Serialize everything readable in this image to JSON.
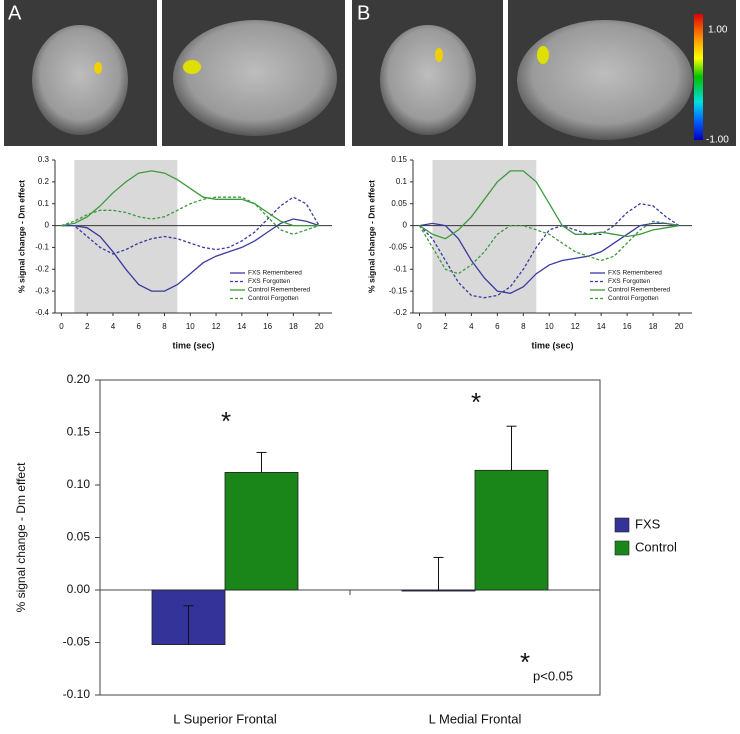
{
  "figure": {
    "panel_labels": [
      "A",
      "B"
    ],
    "colorbar_labels": [
      "1.00",
      "-1.00"
    ]
  },
  "chart_data": [
    {
      "type": "line",
      "xlabel": "time (sec)",
      "ylabel": "% signal change - Dm  effect",
      "x": [
        0,
        1,
        2,
        3,
        4,
        5,
        6,
        7,
        8,
        9,
        10,
        11,
        12,
        13,
        14,
        15,
        16,
        17,
        18,
        19,
        20
      ],
      "xlim": [
        -0.5,
        21
      ],
      "xticks": [
        0,
        2,
        4,
        6,
        8,
        10,
        12,
        14,
        16,
        18,
        20
      ],
      "ylim": [
        -0.4,
        0.3
      ],
      "yticks": [
        -0.4,
        -0.3,
        -0.2,
        -0.1,
        0,
        0.1,
        0.2,
        0.3
      ],
      "shade": [
        1,
        9
      ],
      "series": [
        {
          "name": "FXS Remembered",
          "color": "#3a3aa0",
          "style": "solid",
          "values": [
            0,
            0,
            -0.01,
            -0.05,
            -0.12,
            -0.2,
            -0.27,
            -0.3,
            -0.3,
            -0.27,
            -0.22,
            -0.17,
            -0.14,
            -0.12,
            -0.1,
            -0.07,
            -0.03,
            0.01,
            0.03,
            0.02,
            0
          ]
        },
        {
          "name": "FXS Forgotten",
          "color": "#3a3aa0",
          "style": "dashed",
          "values": [
            0,
            0,
            -0.05,
            -0.1,
            -0.13,
            -0.11,
            -0.08,
            -0.06,
            -0.05,
            -0.06,
            -0.08,
            -0.1,
            -0.11,
            -0.1,
            -0.07,
            -0.03,
            0.03,
            0.09,
            0.13,
            0.1,
            0
          ]
        },
        {
          "name": "Control Remembered",
          "color": "#3c9a3c",
          "style": "solid",
          "values": [
            0,
            0.01,
            0.04,
            0.09,
            0.15,
            0.2,
            0.24,
            0.25,
            0.24,
            0.21,
            0.17,
            0.13,
            0.12,
            0.12,
            0.12,
            0.1,
            0.06,
            0.02,
            0,
            0,
            0
          ]
        },
        {
          "name": "Control Forgotten",
          "color": "#3c9a3c",
          "style": "dashed",
          "values": [
            0,
            0.02,
            0.05,
            0.07,
            0.07,
            0.06,
            0.04,
            0.03,
            0.04,
            0.07,
            0.1,
            0.12,
            0.13,
            0.13,
            0.13,
            0.1,
            0.04,
            -0.02,
            -0.04,
            -0.02,
            0
          ]
        }
      ]
    },
    {
      "type": "line",
      "xlabel": "time (sec)",
      "ylabel": "% signal change - Dm  effect",
      "x": [
        0,
        1,
        2,
        3,
        4,
        5,
        6,
        7,
        8,
        9,
        10,
        11,
        12,
        13,
        14,
        15,
        16,
        17,
        18,
        19,
        20
      ],
      "xlim": [
        -0.5,
        21
      ],
      "xticks": [
        0,
        2,
        4,
        6,
        8,
        10,
        12,
        14,
        16,
        18,
        20
      ],
      "ylim": [
        -0.2,
        0.15
      ],
      "yticks": [
        -0.2,
        -0.15,
        -0.1,
        -0.05,
        0,
        0.05,
        0.1,
        0.15
      ],
      "shade": [
        1,
        9
      ],
      "series": [
        {
          "name": "FXS Remembered",
          "color": "#3a3aa0",
          "style": "solid",
          "values": [
            0,
            0.005,
            0,
            -0.03,
            -0.08,
            -0.12,
            -0.15,
            -0.155,
            -0.14,
            -0.11,
            -0.09,
            -0.08,
            -0.075,
            -0.07,
            -0.06,
            -0.04,
            -0.02,
            0,
            0.005,
            0.005,
            0
          ]
        },
        {
          "name": "FXS Forgotten",
          "color": "#3a3aa0",
          "style": "dashed",
          "values": [
            0,
            -0.03,
            -0.08,
            -0.13,
            -0.16,
            -0.165,
            -0.16,
            -0.14,
            -0.1,
            -0.05,
            -0.01,
            0,
            -0.01,
            -0.02,
            -0.02,
            0,
            0.03,
            0.05,
            0.045,
            0.02,
            0
          ]
        },
        {
          "name": "Control Remembered",
          "color": "#3c9a3c",
          "style": "solid",
          "values": [
            0,
            -0.02,
            -0.03,
            -0.01,
            0.02,
            0.06,
            0.1,
            0.125,
            0.125,
            0.1,
            0.05,
            0,
            -0.02,
            -0.02,
            -0.015,
            -0.02,
            -0.025,
            -0.02,
            -0.01,
            -0.005,
            0
          ]
        },
        {
          "name": "Control Forgotten",
          "color": "#3c9a3c",
          "style": "dashed",
          "values": [
            0,
            -0.05,
            -0.1,
            -0.11,
            -0.09,
            -0.06,
            -0.02,
            0,
            0,
            -0.01,
            -0.02,
            -0.04,
            -0.06,
            -0.07,
            -0.08,
            -0.07,
            -0.04,
            -0.01,
            0.01,
            0.005,
            0
          ]
        }
      ]
    },
    {
      "type": "bar",
      "ylabel": "% signal change - Dm effect",
      "categories": [
        "L Superior Frontal",
        "L Medial Frontal"
      ],
      "ylim": [
        -0.1,
        0.2
      ],
      "yticks": [
        {
          "value": -0.1,
          "label": "-0.10"
        },
        {
          "value": -0.05,
          "label": "-0.05"
        },
        {
          "value": 0,
          "label": "0.00"
        },
        {
          "value": 0.05,
          "label": "0.05"
        },
        {
          "value": 0.1,
          "label": "0.10"
        },
        {
          "value": 0.15,
          "label": "0.15"
        },
        {
          "value": 0.2,
          "label": "0.20"
        }
      ],
      "series": [
        {
          "name": "FXS",
          "color": "#333399",
          "values": [
            -0.052,
            -0.001
          ],
          "errors": [
            0.037,
            0.032
          ]
        },
        {
          "name": "Control",
          "color": "#1a861a",
          "values": [
            0.112,
            0.114
          ],
          "errors": [
            0.019,
            0.042
          ]
        }
      ],
      "annotations": [
        "*",
        "*",
        "*",
        "p<0.05"
      ]
    }
  ]
}
